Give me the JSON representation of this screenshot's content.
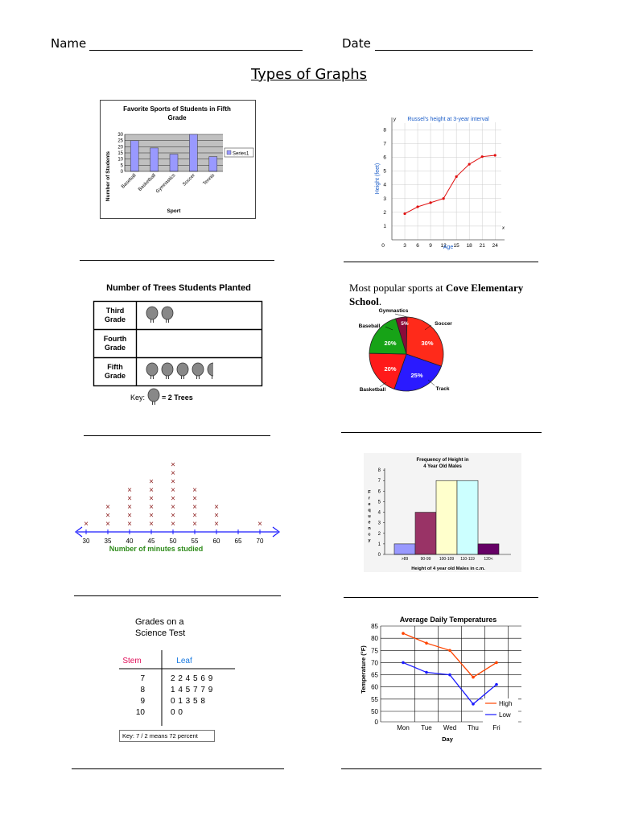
{
  "header": {
    "name_label": "Name",
    "date_label": "Date",
    "title": "Types of Graphs"
  },
  "bar_chart": {
    "title_line1": "Favorite Sports of Students in Fifth",
    "title_line2": "Grade",
    "ylabel": "Number of Students",
    "xlabel": "Sport",
    "legend": "Series1",
    "y_ticks": [
      "0",
      "5",
      "10",
      "15",
      "20",
      "25",
      "30"
    ]
  },
  "line_chart": {
    "title": "Russel's height at 3-year interval",
    "xlabel": "Age",
    "ylabel": "Height (feet)",
    "x_axis_letter": "x",
    "y_axis_letter": "y",
    "x_ticks": [
      "0",
      "3",
      "6",
      "9",
      "12",
      "15",
      "18",
      "21",
      "24"
    ],
    "y_ticks": [
      "1",
      "2",
      "3",
      "4",
      "5",
      "6",
      "7",
      "8"
    ]
  },
  "pictograph": {
    "title": "Number of Trees Students Planted",
    "rows": [
      {
        "label1": "Third",
        "label2": "Grade"
      },
      {
        "label1": "Fourth",
        "label2": "Grade"
      },
      {
        "label1": "Fifth",
        "label2": "Grade"
      }
    ],
    "key_label": "Key:",
    "key_value": "= 2 Trees"
  },
  "pie_chart": {
    "title_prefix": "Most popular sports at ",
    "title_bold": "Cove Elementary",
    "title_bold2": "School",
    "title_suffix": ".",
    "slices": [
      {
        "name": "Soccer",
        "pct_label": "30%",
        "color": "#ff2a1a"
      },
      {
        "name": "Track",
        "pct_label": "25%",
        "color": "#2a1aff"
      },
      {
        "name": "Basketball",
        "pct_label": "20%",
        "color": "#ff1a1a"
      },
      {
        "name": "Baseball",
        "pct_label": "20%",
        "color": "#17a317"
      },
      {
        "name": "Gymnastics",
        "pct_label": "5%",
        "color": "#8a0b3a"
      }
    ]
  },
  "line_plot": {
    "xlabel": "Number of minutes studied",
    "x_ticks": [
      "30",
      "35",
      "40",
      "45",
      "50",
      "55",
      "60",
      "65",
      "70"
    ]
  },
  "histogram": {
    "title_line1": "Frequency of Height in",
    "title_line2": "4 Year Old Males",
    "ylabel": "Frequency",
    "xlabel": "Height of 4 year old Males in c.m.",
    "y_ticks": [
      "0",
      "1",
      "2",
      "3",
      "4",
      "5",
      "6",
      "7",
      "8"
    ]
  },
  "stem_leaf": {
    "title_line1": "Grades on a",
    "title_line2": "Science Test",
    "stem_header": "Stem",
    "leaf_header": "Leaf",
    "rows": [
      {
        "stem": "7",
        "leaf": "2 2 4 5 6 9"
      },
      {
        "stem": "8",
        "leaf": "1 4 5 7 7 9"
      },
      {
        "stem": "9",
        "leaf": "0 1 3 5 8"
      },
      {
        "stem": "10",
        "leaf": "0 0"
      }
    ],
    "key": "Key: 7 / 2 means 72 percent"
  },
  "temp_chart": {
    "title": "Average Daily Temperatures",
    "ylabel": "Temperature (°F)",
    "xlabel": "Day",
    "y_ticks": [
      "0",
      "50",
      "55",
      "60",
      "65",
      "70",
      "75",
      "80",
      "85"
    ],
    "legend_high": "High",
    "legend_low": "Low"
  },
  "chart_data": [
    {
      "type": "bar",
      "title": "Favorite Sports of Students in Fifth Grade",
      "xlabel": "Sport",
      "ylabel": "Number of Students",
      "categories": [
        "Baseball",
        "Basketball",
        "Gymnastics",
        "Soccer",
        "Tennis"
      ],
      "series": [
        {
          "name": "Series1",
          "values": [
            25,
            19,
            14,
            30,
            12
          ]
        }
      ],
      "ylim": [
        0,
        30
      ],
      "grid": true,
      "legend": "right",
      "color": "#9999ff"
    },
    {
      "type": "line",
      "title": "Russel's height at 3-year interval",
      "xlabel": "Age",
      "ylabel": "Height (feet)",
      "x": [
        3,
        6,
        9,
        12,
        15,
        18,
        21,
        24
      ],
      "series": [
        {
          "values": [
            1.9,
            2.4,
            2.7,
            3.0,
            4.6,
            5.5,
            6.05,
            6.15
          ]
        }
      ],
      "xlim": [
        0,
        24
      ],
      "ylim": [
        0,
        8
      ],
      "grid": true,
      "color": "#e01010"
    },
    {
      "type": "table",
      "title": "Number of Trees Students Planted",
      "categories": [
        "Third Grade",
        "Fourth Grade",
        "Fifth Grade"
      ],
      "values": [
        2,
        0,
        4.5
      ],
      "unit": "2 Trees"
    },
    {
      "type": "pie",
      "title": "Most popular sports at Cove Elementary School.",
      "categories": [
        "Soccer",
        "Track",
        "Basketball",
        "Baseball",
        "Gymnastics"
      ],
      "values": [
        30,
        25,
        20,
        20,
        5
      ]
    },
    {
      "type": "scatter",
      "xlabel": "Number of minutes studied",
      "x": [
        30,
        35,
        40,
        45,
        50,
        55,
        60,
        65,
        70
      ],
      "values": [
        1,
        3,
        5,
        6,
        8,
        5,
        3,
        0,
        1
      ],
      "color": "#8b1a1a"
    },
    {
      "type": "bar",
      "title": "Frequency of Height in 4 Year Old Males",
      "xlabel": "Height of 4 year old Males in c.m.",
      "ylabel": "Frequency",
      "categories": [
        ">89",
        "90-99",
        "100-109",
        "110-119",
        "120<"
      ],
      "values": [
        1,
        4,
        7,
        7,
        1
      ],
      "colors": [
        "#9999ff",
        "#993366",
        "#ffffcc",
        "#ccffff",
        "#660066"
      ],
      "ylim": [
        0,
        8
      ]
    },
    {
      "type": "table",
      "title": "Grades on a Science Test",
      "categories": [
        "7",
        "8",
        "9",
        "10"
      ],
      "values": [
        "2 2 4 5 6 9",
        "1 4 5 7 7 9",
        "0 1 3 5 8",
        "0 0"
      ]
    },
    {
      "type": "line",
      "title": "Average Daily Temperatures",
      "xlabel": "Day",
      "ylabel": "Temperature (°F)",
      "categories": [
        "Mon",
        "Tue",
        "Wed",
        "Thu",
        "Fri"
      ],
      "series": [
        {
          "name": "High",
          "values": [
            82,
            78,
            75,
            64,
            70
          ],
          "color": "#ff4400"
        },
        {
          "name": "Low",
          "values": [
            70,
            66,
            65,
            53,
            61
          ],
          "color": "#1a1aff"
        }
      ],
      "ylim": [
        45,
        85
      ],
      "grid": true,
      "legend": "bottom-right"
    }
  ]
}
